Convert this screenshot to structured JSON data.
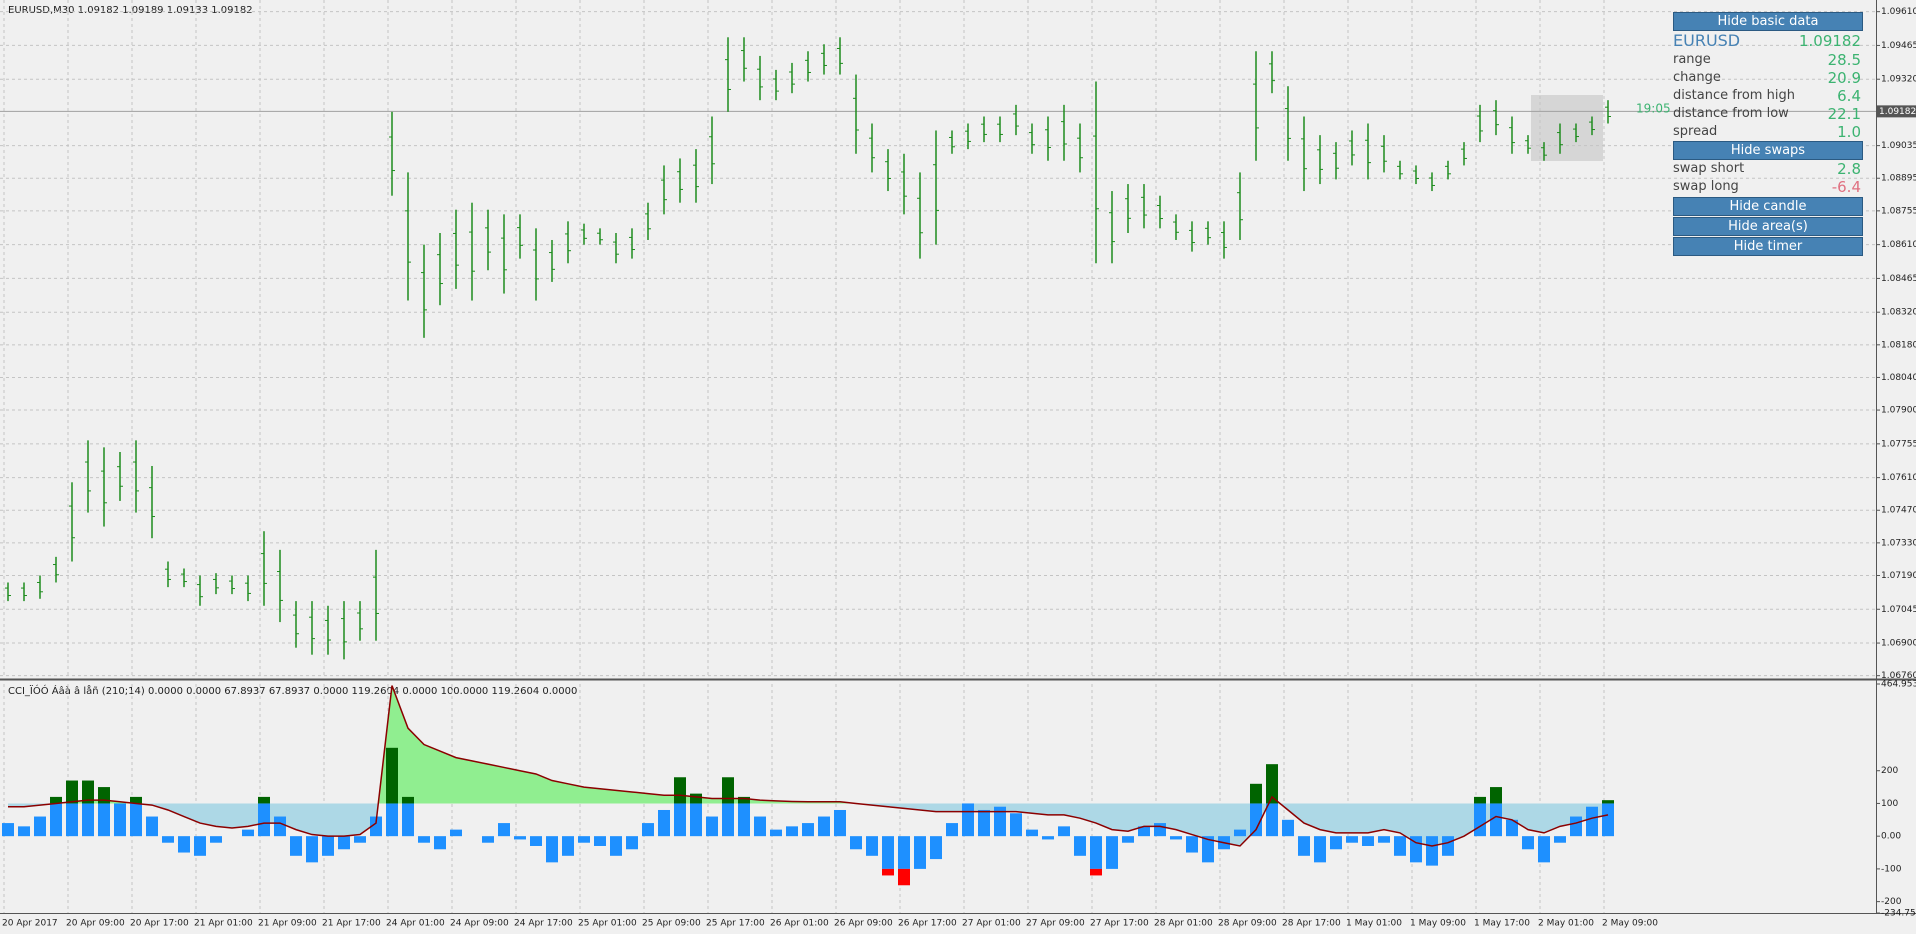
{
  "chart_data": [
    {
      "type": "range-bar",
      "title": "EURUSD,M30  1.09182 1.09189 1.09133 1.09182",
      "color": "#1e8c1e",
      "high": [
        1.0716,
        1.0716,
        1.0719,
        1.0727,
        1.0759,
        1.0777,
        1.0774,
        1.0772,
        1.0777,
        1.0766,
        1.0725,
        1.0722,
        1.0719,
        1.072,
        1.0719,
        1.0719,
        1.0738,
        1.073,
        1.0708,
        1.0708,
        1.0706,
        1.0708,
        1.0708,
        1.073,
        1.0918,
        1.0892,
        1.0861,
        1.0866,
        1.0876,
        1.0879,
        1.0876,
        1.0874,
        1.0874,
        1.0868,
        1.0863,
        1.0871,
        1.087,
        1.0868,
        1.0866,
        1.0868,
        1.0879,
        1.0895,
        1.0898,
        1.0902,
        1.0916,
        1.095,
        1.095,
        1.0942,
        1.0936,
        1.0939,
        1.0944,
        1.0947,
        1.095,
        1.0934,
        1.0913,
        1.0902,
        1.09,
        1.0892,
        1.091,
        1.091,
        1.0913,
        1.0916,
        1.0916,
        1.0921,
        1.0913,
        1.0916,
        1.0921,
        1.0913,
        1.0931,
        1.0884,
        1.0887,
        1.0887,
        1.0882,
        1.0874,
        1.0871,
        1.0871,
        1.0871,
        1.0892,
        1.0944,
        1.0944,
        1.0929,
        1.0916,
        1.0908,
        1.0905,
        1.091,
        1.0913,
        1.0908,
        1.0897,
        1.0895,
        1.0892,
        1.0897,
        1.0905,
        1.0921,
        1.0923,
        1.0916,
        1.0908,
        1.0905,
        1.0913,
        1.0913,
        1.0916,
        1.0923
      ],
      "low": [
        1.0708,
        1.0708,
        1.0709,
        1.0716,
        1.0725,
        1.0746,
        1.074,
        1.0751,
        1.0746,
        1.0735,
        1.0714,
        1.0714,
        1.0706,
        1.0711,
        1.0711,
        1.0708,
        1.0706,
        1.0699,
        1.0688,
        1.0685,
        1.0685,
        1.0683,
        1.0691,
        1.0691,
        1.0882,
        1.0837,
        1.0821,
        1.0835,
        1.0842,
        1.0837,
        1.085,
        1.084,
        1.0855,
        1.0837,
        1.0845,
        1.0853,
        1.0861,
        1.0861,
        1.0853,
        1.0855,
        1.0863,
        1.0874,
        1.0879,
        1.0879,
        1.0887,
        1.0918,
        1.0931,
        1.0923,
        1.0923,
        1.0926,
        1.0931,
        1.0934,
        1.0934,
        1.09,
        1.0892,
        1.0884,
        1.0874,
        1.0855,
        1.0861,
        1.09,
        1.0902,
        1.0905,
        1.0905,
        1.0908,
        1.09,
        1.0897,
        1.0897,
        1.0892,
        1.0853,
        1.0853,
        1.0866,
        1.0868,
        1.0868,
        1.0863,
        1.0858,
        1.0861,
        1.0855,
        1.0863,
        1.0897,
        1.0926,
        1.0897,
        1.0884,
        1.0887,
        1.0889,
        1.0895,
        1.0889,
        1.0892,
        1.0889,
        1.0887,
        1.0884,
        1.0889,
        1.0895,
        1.0905,
        1.0908,
        1.09,
        1.09,
        1.0897,
        1.09,
        1.0905,
        1.0908,
        1.0913
      ],
      "ylim": [
        1.0675,
        1.0966
      ],
      "yticks": [
        {
          "value": 1.0961,
          "label": "1.09610"
        },
        1.09465,
        {
          "value": 1.0932,
          "label": "1.09320"
        },
        1.09035,
        1.08895,
        1.08755,
        {
          "value": 1.0861,
          "label": "1.08610"
        },
        1.08465,
        {
          "value": 1.0832,
          "label": "1.08320"
        },
        {
          "value": 1.0818,
          "label": "1.08180"
        },
        {
          "value": 1.0804,
          "label": "1.08040"
        },
        {
          "value": 1.079,
          "label": "1.07900"
        },
        1.07755,
        {
          "value": 1.0761,
          "label": "1.07610"
        },
        {
          "value": 1.0747,
          "label": "1.07470"
        },
        {
          "value": 1.0733,
          "label": "1.07330"
        },
        {
          "value": 1.0719,
          "label": "1.07190"
        },
        1.07045,
        {
          "value": 1.069,
          "label": "1.06900"
        },
        {
          "value": 1.0676,
          "label": "1.06760"
        }
      ],
      "current_price": 1.09182,
      "timer": "19:05",
      "grid": true,
      "time_labels": [
        "20 Apr 2017",
        "20 Apr 09:00",
        "20 Apr 17:00",
        "21 Apr 01:00",
        "21 Apr 09:00",
        "21 Apr 17:00",
        "24 Apr 01:00",
        "24 Apr 09:00",
        "24 Apr 17:00",
        "25 Apr 01:00",
        "25 Apr 09:00",
        "25 Apr 17:00",
        "26 Apr 01:00",
        "26 Apr 09:00",
        "26 Apr 17:00",
        "27 Apr 01:00",
        "27 Apr 09:00",
        "27 Apr 17:00",
        "28 Apr 01:00",
        "28 Apr 09:00",
        "28 Apr 17:00",
        "1 May 01:00",
        "1 May 09:00",
        "1 May 17:00",
        "2 May 01:00",
        "2 May 09:00"
      ]
    },
    {
      "type": "cci",
      "title": "CCI_ÏÓÓ Áâà â låñ (210;14) 0.0000 0.0000 67.8937 67.8937 0.0000 119.2604 0.0000 100.0000 119.2604 0.0000",
      "values": [
        40,
        30,
        60,
        120,
        170,
        170,
        150,
        100,
        120,
        60,
        -20,
        -50,
        -60,
        -20,
        0,
        20,
        120,
        60,
        -60,
        -80,
        -60,
        -40,
        -20,
        60,
        270,
        120,
        -20,
        -40,
        20,
        0,
        -20,
        40,
        -10,
        -30,
        -80,
        -60,
        -20,
        -30,
        -60,
        -40,
        40,
        80,
        180,
        130,
        60,
        180,
        120,
        60,
        20,
        30,
        40,
        60,
        80,
        -40,
        -60,
        -120,
        -150,
        -100,
        -70,
        40,
        100,
        80,
        90,
        70,
        20,
        -10,
        30,
        -60,
        -120,
        -100,
        -20,
        30,
        40,
        -10,
        -50,
        -80,
        -40,
        20,
        160,
        220,
        50,
        -60,
        -80,
        -40,
        -20,
        -30,
        -20,
        -60,
        -80,
        -90,
        -60,
        0,
        120,
        150,
        50,
        -40,
        -80,
        -20,
        60,
        90,
        110
      ],
      "signal": [
        90,
        90,
        95,
        100,
        105,
        110,
        110,
        105,
        100,
        95,
        80,
        60,
        40,
        30,
        25,
        30,
        40,
        40,
        20,
        5,
        0,
        0,
        5,
        40,
        460,
        330,
        280,
        260,
        240,
        230,
        220,
        210,
        200,
        190,
        170,
        160,
        150,
        145,
        140,
        135,
        130,
        125,
        125,
        120,
        115,
        115,
        115,
        110,
        108,
        106,
        105,
        105,
        105,
        100,
        95,
        90,
        85,
        80,
        75,
        75,
        75,
        75,
        75,
        75,
        70,
        65,
        65,
        55,
        40,
        20,
        15,
        30,
        30,
        20,
        5,
        -10,
        -20,
        -30,
        20,
        120,
        80,
        40,
        20,
        10,
        10,
        10,
        20,
        10,
        -20,
        -30,
        -20,
        0,
        30,
        60,
        50,
        20,
        10,
        30,
        40,
        55,
        65
      ],
      "ylim": [
        -234.75,
        464.9532
      ],
      "yticks": [
        464.9532,
        200,
        100,
        {
          "value": 0,
          "label": "0.00"
        },
        -100,
        -200,
        -234.75
      ],
      "colors": {
        "bar": "#1e90ff",
        "above": "#006400",
        "below": "#ff0000",
        "line": "#8b0000",
        "fill_above": "#90ee90",
        "fill_below": "#add8e6"
      }
    }
  ],
  "panel": {
    "buttons": [
      "Hide basic data",
      "Hide swaps",
      "Hide candle",
      "Hide area(s)",
      "Hide timer"
    ],
    "symbol": "EURUSD",
    "price": 1.09182,
    "basic": [
      {
        "label": "range",
        "value": 28.5
      },
      {
        "label": "change",
        "value": 20.9
      },
      {
        "label": "distance from high",
        "value": 6.4
      },
      {
        "label": "distance from low",
        "value": 22.1
      },
      {
        "label": "spread",
        "value": {
          "value": 1,
          "label": "1.0"
        }
      }
    ],
    "swaps": [
      {
        "label": "swap short",
        "value": 2.8
      },
      {
        "label": "swap long",
        "value": -6.4
      }
    ]
  }
}
